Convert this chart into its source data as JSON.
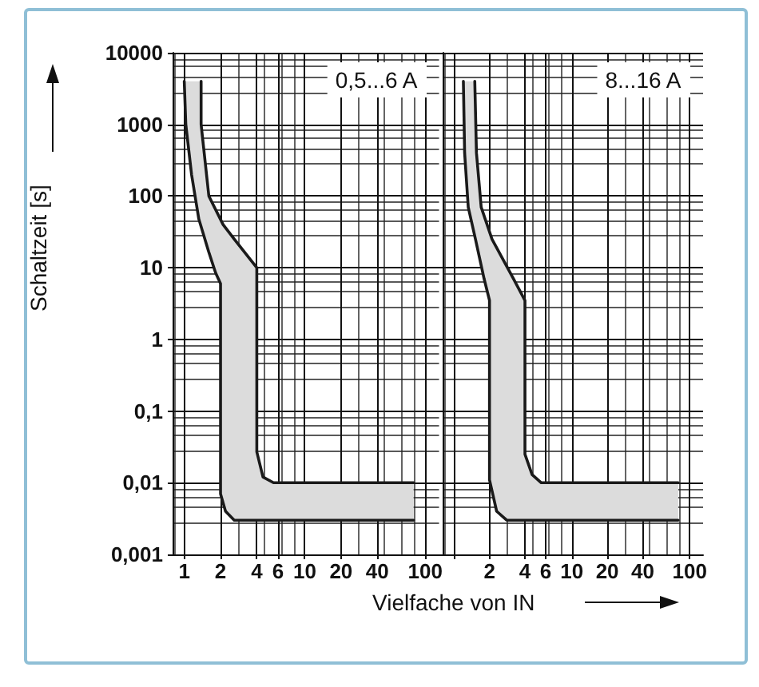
{
  "chart_data": [
    {
      "type": "line",
      "ylabel": "Schaltzeit [s]",
      "annotations": [
        "0,5...6 A"
      ],
      "log": "xy",
      "grid": true,
      "marker": "none",
      "xlim": [
        0.8,
        130
      ],
      "xticks": [
        1,
        2,
        4,
        6,
        10,
        20,
        40,
        100
      ],
      "ylim": [
        0.001,
        10000
      ],
      "yticks": [
        {
          "value": 0.001,
          "label": "0,001"
        },
        {
          "value": 0.01,
          "label": "0,01"
        },
        {
          "value": 0.1,
          "label": "0,1"
        },
        1,
        10,
        100,
        1000,
        10000
      ],
      "series": [
        {
          "color": "#1a1a1a",
          "x": [
            1.38,
            1.38,
            1.6,
            2.1,
            2.6,
            4,
            4,
            4.5,
            5.5,
            80
          ],
          "values": [
            4000,
            1000,
            100,
            40,
            25,
            10,
            0.027,
            0.012,
            0.01,
            0.01
          ]
        },
        {
          "color": "#1a1a1a",
          "x": [
            1,
            1.03,
            1.15,
            1.32,
            1.59,
            1.82,
            2,
            2,
            2.2,
            2.6,
            80
          ],
          "values": [
            4000,
            1000,
            200,
            48,
            17,
            8.5,
            6,
            0.007,
            0.004,
            0.003,
            0.003
          ]
        }
      ]
    },
    {
      "type": "line",
      "xlabel": "Vielfache von IN",
      "annotations": [
        "8...16 A"
      ],
      "log": "xy",
      "grid": true,
      "marker": "none",
      "tick_labels": "x",
      "xlim": [
        0.8,
        130
      ],
      "xticks": [
        {
          "value": 1,
          "label": null
        },
        2,
        4,
        6,
        10,
        20,
        40,
        100
      ],
      "ylim": [
        0.001,
        10000
      ],
      "yticks": [
        0.001,
        0.01,
        0.1,
        1,
        10,
        100,
        1000,
        10000
      ],
      "series": [
        {
          "color": "#1a1a1a",
          "x": [
            1.5,
            1.55,
            1.7,
            2.1,
            3.2,
            4,
            4,
            4.6,
            5.5,
            80
          ],
          "values": [
            4000,
            400,
            70,
            25,
            7,
            3.5,
            0.025,
            0.013,
            0.01,
            0.01
          ]
        },
        {
          "color": "#1a1a1a",
          "x": [
            1.2,
            1.23,
            1.32,
            1.52,
            1.8,
            2,
            2,
            2.3,
            2.8,
            80
          ],
          "values": [
            4000,
            400,
            70,
            25,
            7,
            3.5,
            0.011,
            0.004,
            0.003,
            0.003
          ]
        }
      ]
    }
  ]
}
